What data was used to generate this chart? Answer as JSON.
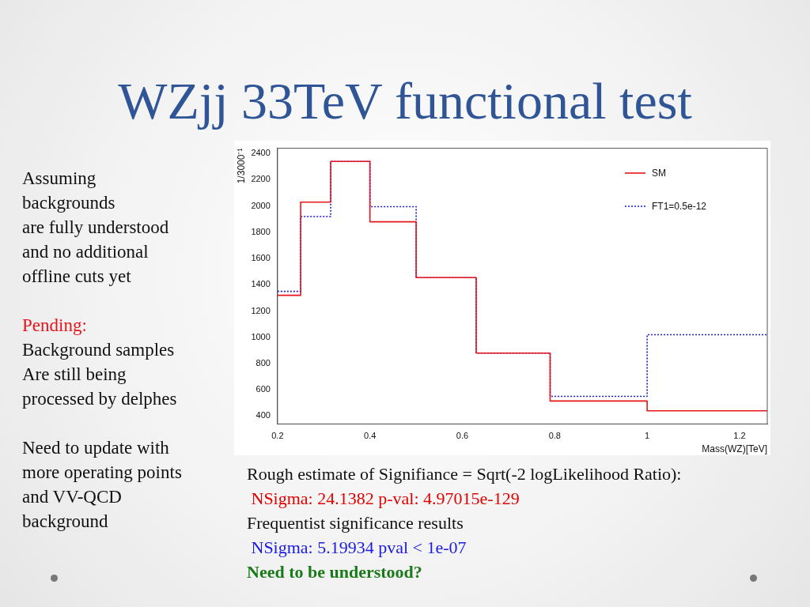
{
  "chart_data": {
    "type": "histogram",
    "title": "WZjj 33TeV functional test",
    "xlabel": "Mass(WZ)[TeV]",
    "ylabel": "1/3000⁻¹",
    "bins": [
      0.2,
      0.25,
      0.315,
      0.4,
      0.5,
      0.63,
      0.79,
      1.0,
      1.26
    ],
    "series": [
      {
        "name": "SM",
        "color": "#e8141c",
        "line_style": "solid",
        "values": [
          1320,
          2030,
          2340,
          1880,
          1455,
          880,
          515,
          440
        ]
      },
      {
        "name": "FT1=0.5e-12",
        "color": "#1a1ae0",
        "line_style": "dotted",
        "values": [
          1350,
          1920,
          2340,
          1995,
          1455,
          880,
          550,
          1020
        ]
      }
    ],
    "xlim": [
      0.2,
      1.26
    ],
    "xticks": [
      0.2,
      0.4,
      0.6,
      0.8,
      1,
      1.2
    ],
    "ylim": [
      340,
      2440
    ],
    "yticks": [
      400,
      600,
      800,
      1000,
      1200,
      1400,
      1600,
      1800,
      2000,
      2200,
      2400
    ],
    "legend": "top right",
    "annotations": [
      "Assuming\nbackgrounds\nare fully understood\nand no additional\noffline cuts yet",
      "Pending:",
      "Background samples\nAre still being\nprocessed by delphes",
      "Need to update with\nmore operating points\nand VV-QCD\nbackground",
      "Rough estimate of Signifiance = Sqrt(-2 logLikelihood Ratio):",
      " NSigma: 24.1382 p-val: 4.97015e-129",
      "Frequentist significance results",
      " NSigma: 5.19934 pval < 1e-07",
      "Need to be understood?"
    ]
  }
}
